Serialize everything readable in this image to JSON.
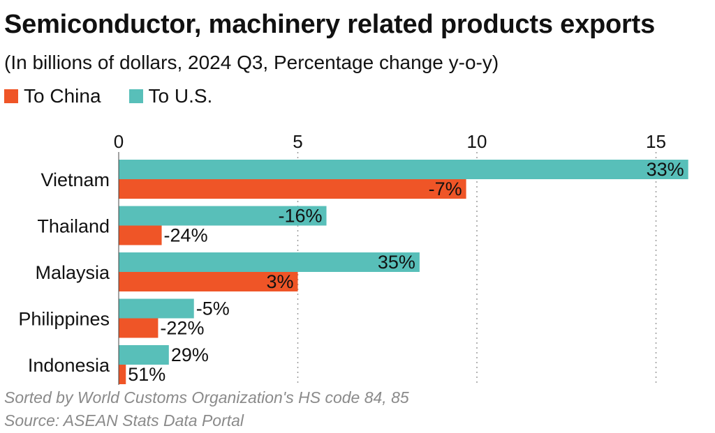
{
  "title": "Semiconductor, machinery related products exports",
  "subtitle": "(In billions of dollars, 2024 Q3, Percentage change y-o-y)",
  "footnotes": [
    "Sorted by World Customs Organization's HS code 84, 85",
    "Source: ASEAN Stats Data Portal"
  ],
  "chart_data": {
    "type": "bar",
    "orientation": "horizontal",
    "categories": [
      "Vietnam",
      "Thailand",
      "Malaysia",
      "Philippines",
      "Indonesia"
    ],
    "series": [
      {
        "name": "To U.S.",
        "color": "#58bfb9",
        "values": [
          15.9,
          5.8,
          8.4,
          2.1,
          1.4
        ],
        "labels": [
          "33%",
          "-16%",
          "35%",
          "-5%",
          "29%"
        ]
      },
      {
        "name": "To China",
        "color": "#ef5527",
        "values": [
          9.7,
          1.2,
          5.0,
          1.1,
          0.2
        ],
        "labels": [
          "-7%",
          "-24%",
          "3%",
          "-22%",
          "51%"
        ]
      }
    ],
    "xlim": [
      0,
      16
    ],
    "xticks": [
      0,
      5,
      10,
      15
    ],
    "grid": "vertical dotted",
    "legend": "top-left"
  }
}
